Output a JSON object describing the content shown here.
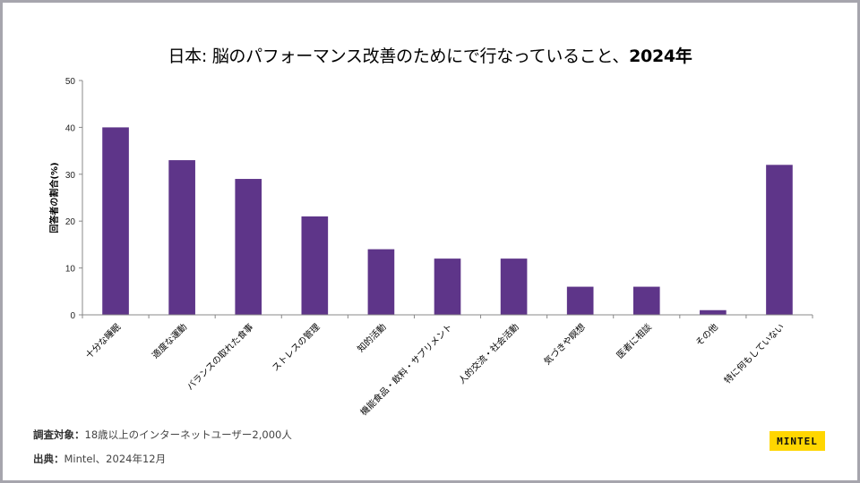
{
  "title": {
    "main": "日本: 脳のパフォーマンス改善のためにで行なっていること、",
    "year": "2024年"
  },
  "chart_data": {
    "type": "bar",
    "title": "日本: 脳のパフォーマンス改善のためにで行なっていること、2024年",
    "xlabel": "",
    "ylabel": "回答者の割合(%)",
    "ylim": [
      0,
      50
    ],
    "yticks": [
      0,
      10,
      20,
      30,
      40,
      50
    ],
    "grid": false,
    "color": "#5e3589",
    "categories": [
      "十分な睡眠",
      "適度な運動",
      "バランスの取れた食事",
      "ストレスの管理",
      "知的活動",
      "機能食品・飲料・サプリメント",
      "人的交流・社会活動",
      "気づきや瞑想",
      "医者に相談",
      "その他",
      "特に何もしていない"
    ],
    "values": [
      40,
      33,
      29,
      21,
      14,
      12,
      12,
      6,
      6,
      1,
      32
    ]
  },
  "footer": {
    "survey_label": "調査対象：",
    "survey_value": "18歳以上のインターネットユーザー2,000人",
    "source_label": "出典：",
    "source_value": "Mintel、2024年12月"
  },
  "logo": {
    "text": "MINTEL",
    "color": "#ffd600"
  }
}
